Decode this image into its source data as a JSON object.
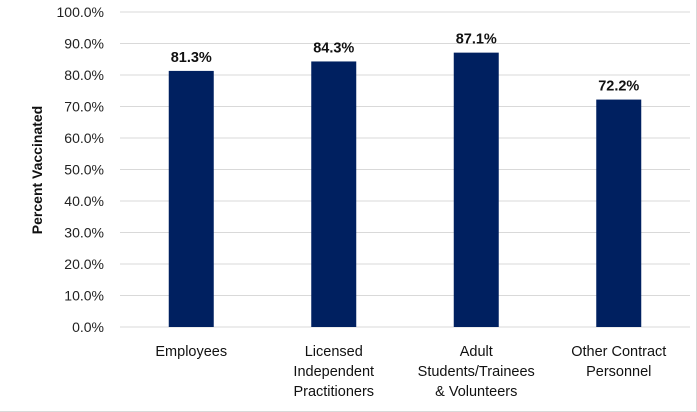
{
  "chart_data": {
    "type": "bar",
    "ylabel": "Percent Vaccinated",
    "ylim": [
      0,
      100
    ],
    "ytick_step": 10,
    "ytick_labels": [
      "0.0%",
      "10.0%",
      "20.0%",
      "30.0%",
      "40.0%",
      "50.0%",
      "60.0%",
      "70.0%",
      "80.0%",
      "90.0%",
      "100.0%"
    ],
    "categories": [
      [
        "Employees"
      ],
      [
        "Licensed",
        "Independent",
        "Practitioners"
      ],
      [
        "Adult",
        "Students/Trainees",
        "& Volunteers"
      ],
      [
        "Other Contract",
        "Personnel"
      ]
    ],
    "values": [
      81.3,
      84.3,
      87.1,
      72.2
    ],
    "data_labels": [
      "81.3%",
      "84.3%",
      "87.1%",
      "72.2%"
    ],
    "grid": true,
    "bar_color": "#002060",
    "grid_color": "#d9d9d9"
  }
}
